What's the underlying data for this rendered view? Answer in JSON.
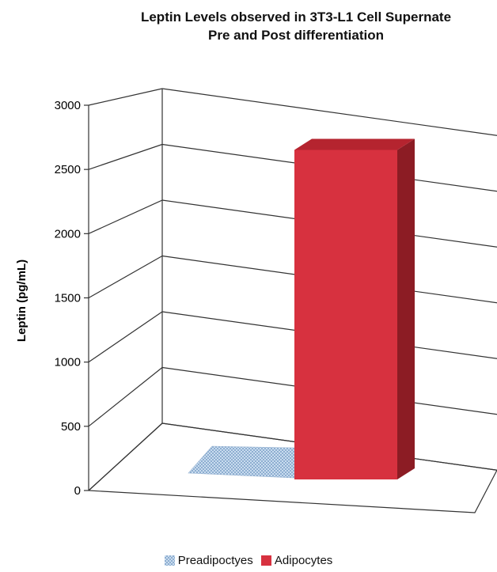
{
  "chart_data": {
    "type": "bar",
    "title": [
      "Leptin Levels observed in 3T3-L1 Cell Supernate",
      "Pre and Post differentiation"
    ],
    "xlabel": "",
    "ylabel": "Leptin (pg/mL)",
    "ylim": [
      0,
      3000
    ],
    "yticks": [
      "0",
      "500",
      "1000",
      "1500",
      "2000",
      "2500",
      "3000"
    ],
    "categories": [
      "Preadipoctyes",
      "Adipocytes"
    ],
    "values": [
      0,
      2750
    ],
    "colors": {
      "Preadipoctyes": "#b9cfe6",
      "Adipocytes": "#d7313f",
      "Adipocytes_side": "#8c1c24",
      "Adipocytes_top": "#b5242f"
    },
    "grid": true,
    "three_d": true,
    "legend_position": "bottom"
  }
}
